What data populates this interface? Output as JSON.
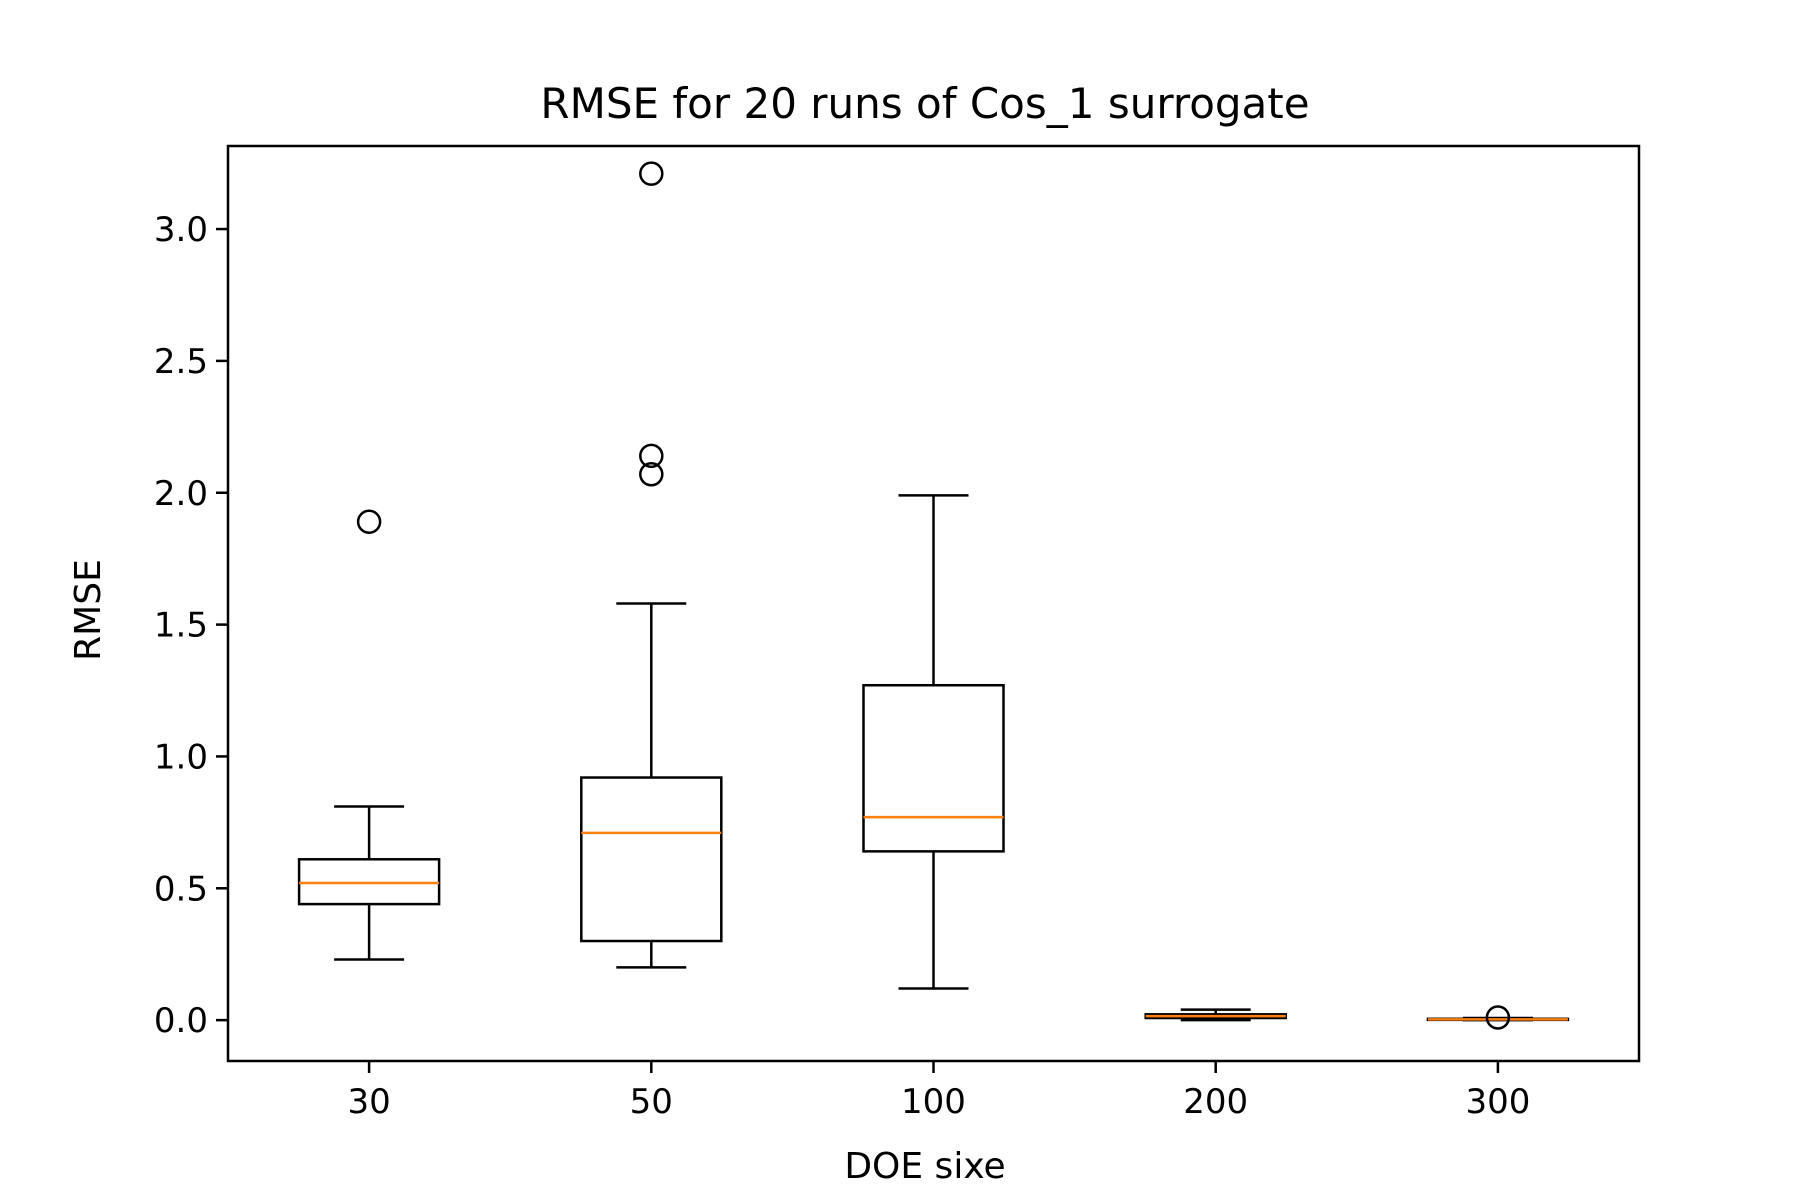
{
  "chart_data": {
    "type": "boxplot",
    "title": "RMSE for 20 runs of Cos_1 surrogate",
    "xlabel": "DOE sixe",
    "ylabel": "RMSE",
    "categories": [
      "30",
      "50",
      "100",
      "200",
      "300"
    ],
    "ylim": [
      -0.155,
      3.315
    ],
    "yticks": [
      0.0,
      0.5,
      1.0,
      1.5,
      2.0,
      2.5,
      3.0
    ],
    "ytick_labels": [
      "0.0",
      "0.5",
      "1.0",
      "1.5",
      "2.0",
      "2.5",
      "3.0"
    ],
    "grid": false,
    "legend": "none",
    "series": [
      {
        "whisker_low": 0.23,
        "q1": 0.44,
        "median": 0.52,
        "q3": 0.61,
        "whisker_high": 0.81,
        "outliers": [
          1.89
        ]
      },
      {
        "whisker_low": 0.2,
        "q1": 0.3,
        "median": 0.71,
        "q3": 0.92,
        "whisker_high": 1.58,
        "outliers": [
          2.07,
          2.14,
          3.21
        ]
      },
      {
        "whisker_low": 0.12,
        "q1": 0.64,
        "median": 0.77,
        "q3": 1.27,
        "whisker_high": 1.99,
        "outliers": []
      },
      {
        "whisker_low": 0.0,
        "q1": 0.008,
        "median": 0.015,
        "q3": 0.022,
        "whisker_high": 0.04,
        "outliers": []
      },
      {
        "whisker_low": 0.0,
        "q1": 0.001,
        "median": 0.003,
        "q3": 0.005,
        "whisker_high": 0.008,
        "outliers": [
          0.01
        ]
      }
    ],
    "colors": {
      "box": "#000000",
      "median": "#ff7f0e",
      "background": "#ffffff"
    }
  }
}
